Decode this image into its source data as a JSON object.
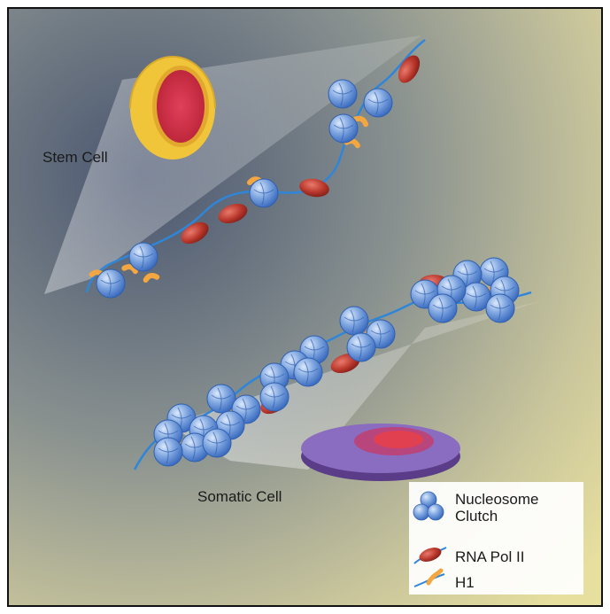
{
  "labels": {
    "stem_cell": "Stem Cell",
    "somatic_cell": "Somatic Cell"
  },
  "legend": {
    "nucleosome_line1": "Nucleosome",
    "nucleosome_line2": "Clutch",
    "rna_pol": "RNA Pol II",
    "h1": "H1"
  },
  "colors": {
    "nucleosome": "#5b8fd6",
    "rna_pol": "#c0392b",
    "h1": "#f4a640",
    "dna": "#2f86d9",
    "stem_nucleus": "#f0c53a",
    "somatic_nucleus": "#7a5aa8"
  }
}
